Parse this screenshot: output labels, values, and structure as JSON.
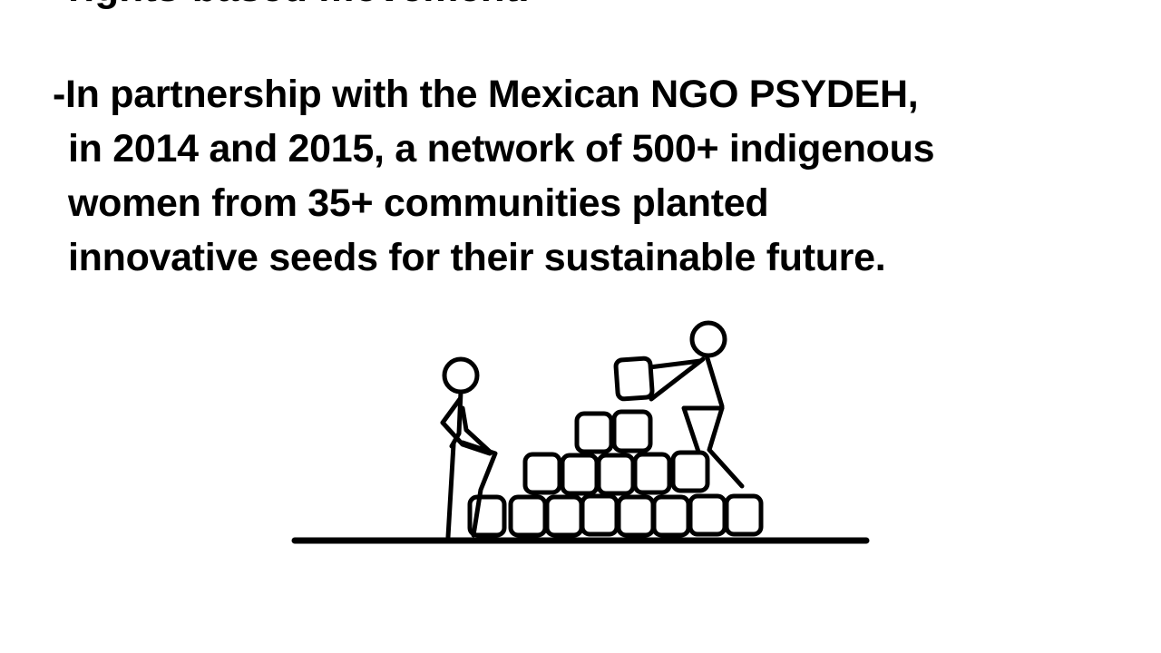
{
  "slide": {
    "previous_line_fragment": "rights-based movement.",
    "paragraph_lines": [
      "-In partnership with the Mexican NGO PSYDEH,",
      "in 2014 and 2015, a network of 500+ indigenous",
      "women from 35+ communities planted",
      "innovative seeds for their sustainable future."
    ]
  },
  "illustration": {
    "name": "stick-figures-building-block-wall",
    "stroke_color": "#000000",
    "fill_color": "#ffffff"
  }
}
